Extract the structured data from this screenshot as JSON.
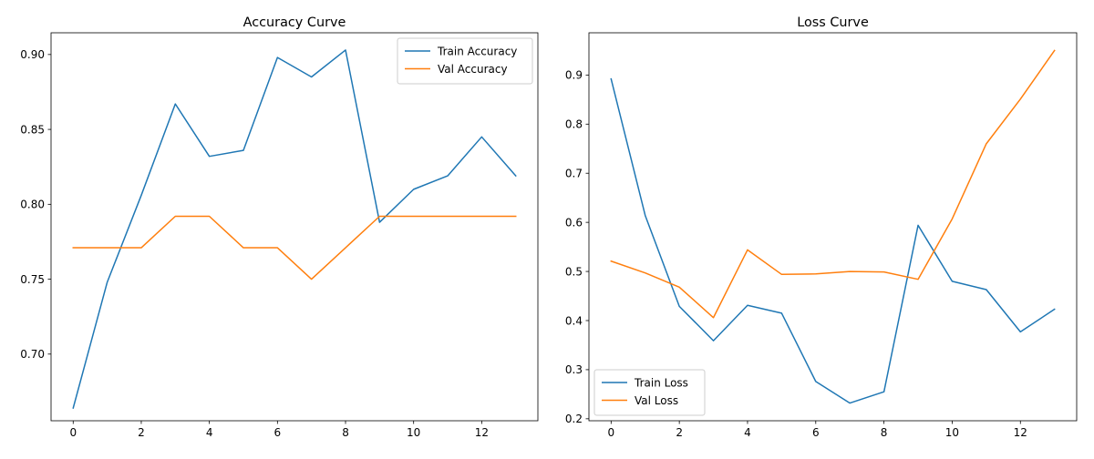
{
  "chart_data": [
    {
      "type": "line",
      "title": "Accuracy Curve",
      "xlabel": "",
      "ylabel": "",
      "x": [
        0,
        1,
        2,
        3,
        4,
        5,
        6,
        7,
        8,
        9,
        10,
        11,
        12,
        13
      ],
      "xlim": [
        -0.65,
        13.65
      ],
      "ylim": [
        0.6555,
        0.9145
      ],
      "xticks": [
        0,
        2,
        4,
        6,
        8,
        10,
        12
      ],
      "yticks": [
        0.7,
        0.75,
        0.8,
        0.85,
        0.9
      ],
      "ytick_labels": [
        "0.70",
        "0.75",
        "0.80",
        "0.85",
        "0.90"
      ],
      "legend_position": "upper right",
      "series": [
        {
          "name": "Train Accuracy",
          "color": "#1f77b4",
          "values": [
            0.664,
            0.748,
            0.806,
            0.867,
            0.832,
            0.836,
            0.898,
            0.885,
            0.903,
            0.788,
            0.81,
            0.819,
            0.845,
            0.819
          ]
        },
        {
          "name": "Val Accuracy",
          "color": "#ff7f0e",
          "values": [
            0.771,
            0.771,
            0.771,
            0.792,
            0.792,
            0.771,
            0.771,
            0.75,
            0.771,
            0.792,
            0.792,
            0.792,
            0.792,
            0.792
          ]
        }
      ]
    },
    {
      "type": "line",
      "title": "Loss Curve",
      "xlabel": "",
      "ylabel": "",
      "x": [
        0,
        1,
        2,
        3,
        4,
        5,
        6,
        7,
        8,
        9,
        10,
        11,
        12,
        13
      ],
      "xlim": [
        -0.65,
        13.65
      ],
      "ylim": [
        0.196,
        0.986
      ],
      "xticks": [
        0,
        2,
        4,
        6,
        8,
        10,
        12
      ],
      "yticks": [
        0.2,
        0.3,
        0.4,
        0.5,
        0.6,
        0.7,
        0.8,
        0.9
      ],
      "ytick_labels": [
        "0.2",
        "0.3",
        "0.4",
        "0.5",
        "0.6",
        "0.7",
        "0.8",
        "0.9"
      ],
      "legend_position": "lower left",
      "series": [
        {
          "name": "Train Loss",
          "color": "#1f77b4",
          "values": [
            0.892,
            0.614,
            0.429,
            0.359,
            0.431,
            0.415,
            0.276,
            0.232,
            0.255,
            0.594,
            0.48,
            0.463,
            0.377,
            0.423
          ]
        },
        {
          "name": "Val Loss",
          "color": "#ff7f0e",
          "values": [
            0.521,
            0.497,
            0.468,
            0.406,
            0.544,
            0.494,
            0.495,
            0.5,
            0.499,
            0.484,
            0.607,
            0.76,
            0.851,
            0.95
          ]
        }
      ]
    }
  ]
}
